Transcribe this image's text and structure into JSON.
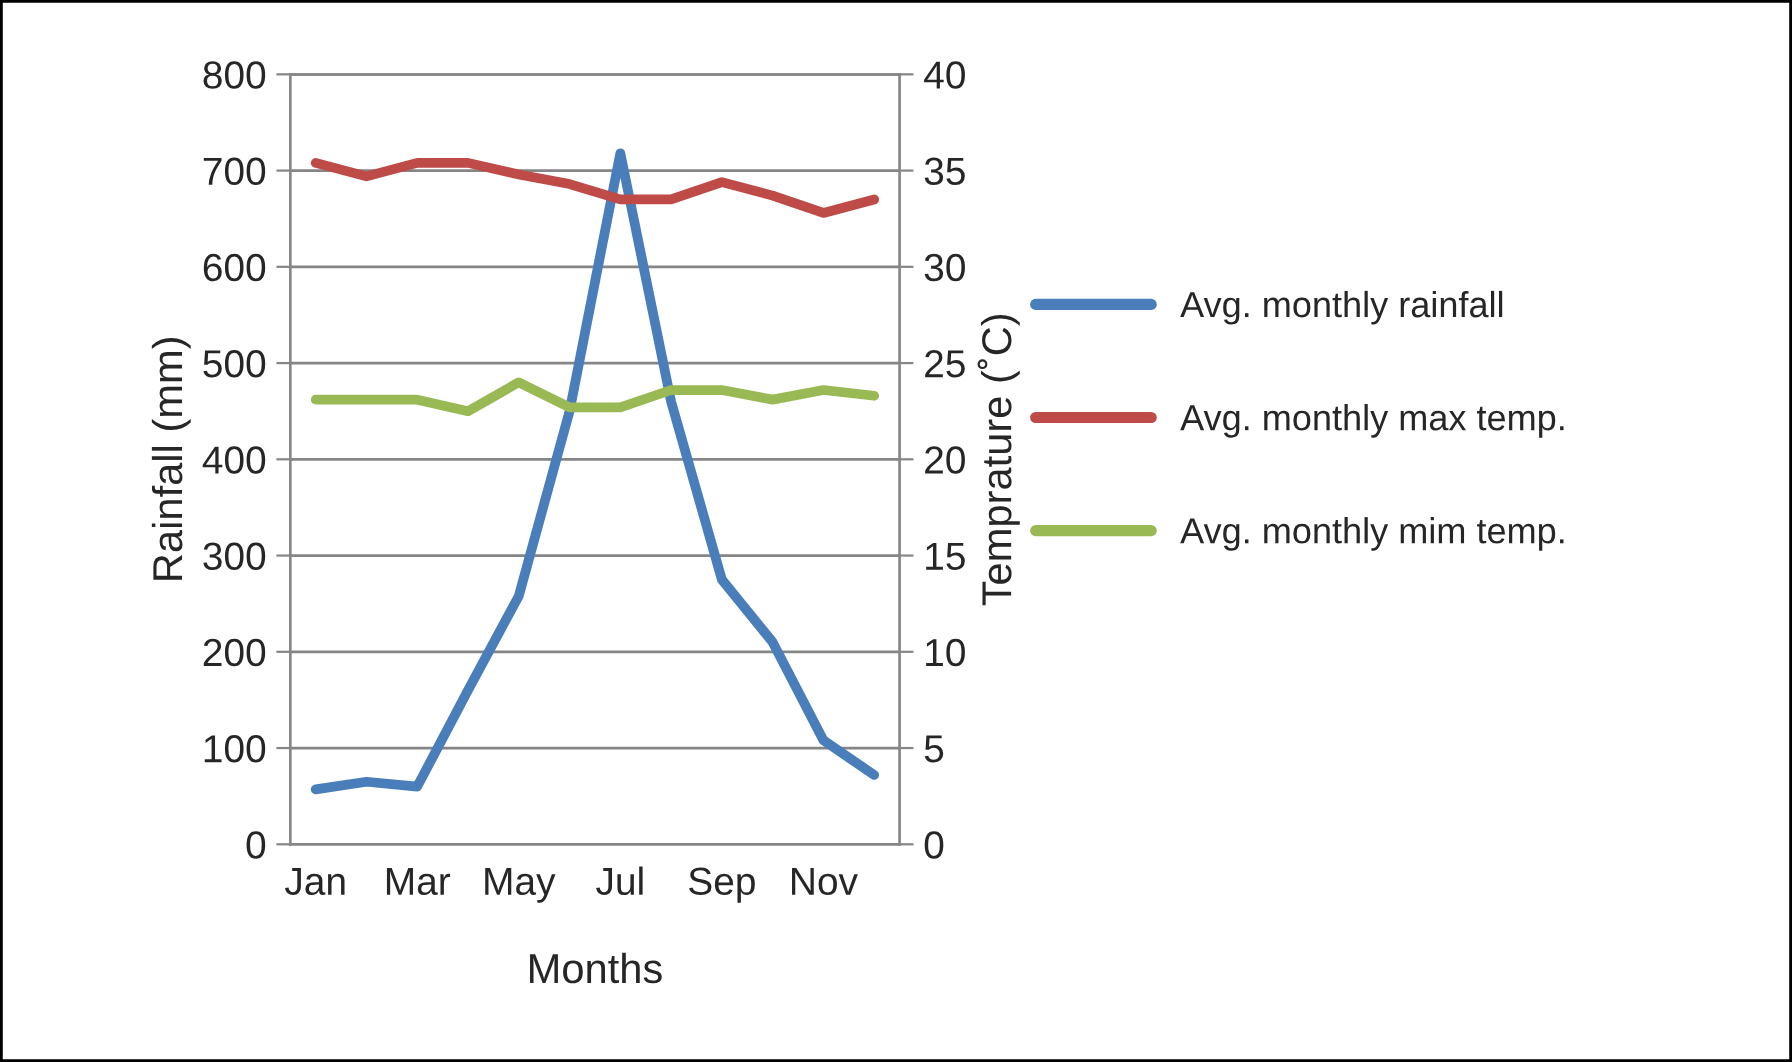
{
  "chart_data": {
    "type": "line",
    "xlabel": "Months",
    "ylabel": "Rainfall (mm)",
    "y2label": "Temprature (˚C)",
    "categories": [
      "Jan",
      null,
      "Mar",
      null,
      "May",
      null,
      "Jul",
      null,
      "Sep",
      null,
      "Nov",
      null
    ],
    "series": [
      {
        "name": "Avg. monthly rainfall",
        "color": "#4a7ebb",
        "values": [
          57,
          65,
          60,
          160,
          258,
          450,
          718,
          460,
          275,
          210,
          108,
          72
        ]
      },
      {
        "name": "Avg. monthly max temp.",
        "color": "#be4b48",
        "axis": "y2",
        "values": [
          35.4,
          34.7,
          35.4,
          35.4,
          34.8,
          34.3,
          33.5,
          33.5,
          34.4,
          33.7,
          32.8,
          33.5
        ]
      },
      {
        "name": "Avg. monthly mim temp.",
        "color": "#98b954",
        "axis": "y2",
        "values": [
          23.1,
          23.1,
          23.1,
          22.5,
          24.0,
          22.7,
          22.7,
          23.6,
          23.6,
          23.1,
          23.6,
          23.3
        ]
      }
    ],
    "ylim": [
      0,
      800
    ],
    "yticks": [
      0,
      100,
      200,
      300,
      400,
      500,
      600,
      700,
      800
    ],
    "y2lim": [
      0,
      40
    ],
    "y2ticks": [
      0,
      5,
      10,
      15,
      20,
      25,
      30,
      35,
      40
    ],
    "grid": "y",
    "legend": "right",
    "marker": "none",
    "line_style": "solid"
  }
}
